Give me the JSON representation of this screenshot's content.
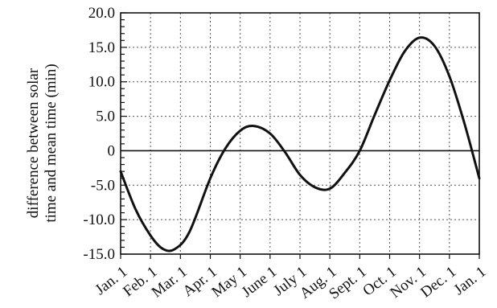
{
  "chart_data": {
    "type": "line",
    "title": "",
    "xlabel": "",
    "ylabel_lines": [
      "difference between solar",
      "time and mean time (min)"
    ],
    "ylim": [
      -15,
      20
    ],
    "x_tick_labels": [
      "Jan. 1",
      "Feb. 1",
      "Mar. 1",
      "Apr. 1",
      "May 1",
      "June 1",
      "July 1",
      "Aug. 1",
      "Sept. 1",
      "Oct. 1",
      "Nov. 1",
      "Dec. 1",
      "Jan. 1"
    ],
    "y_tick_labels": [
      "20.0",
      "15.0",
      "10.0",
      "5.0",
      "0",
      "-5.0",
      "-10.0",
      "-15.0"
    ],
    "y_tick_values": [
      20,
      15,
      10,
      5,
      0,
      -5,
      -10,
      -15
    ],
    "grid": "dotted",
    "zero_line": true,
    "series": [
      {
        "x_months": [
          0,
          0.5,
          1.0,
          1.4,
          1.8,
          2.3,
          3.0,
          3.5,
          4.0,
          4.45,
          5.0,
          5.5,
          6.0,
          6.5,
          7.0,
          7.5,
          8.0,
          8.5,
          9.0,
          9.5,
          10.0,
          10.5,
          11.0,
          11.5,
          12.0
        ],
        "y": [
          -3.0,
          -8.5,
          -12.3,
          -14.2,
          -14.3,
          -11.8,
          -4.0,
          0.3,
          2.9,
          3.6,
          2.5,
          -0.2,
          -3.5,
          -5.3,
          -5.5,
          -3.2,
          0.0,
          5.2,
          10.2,
          14.4,
          16.4,
          15.2,
          10.8,
          4.0,
          -4.0
        ]
      }
    ],
    "colors": {
      "line": "#111111",
      "grid": "#555555",
      "axis": "#111111"
    }
  }
}
